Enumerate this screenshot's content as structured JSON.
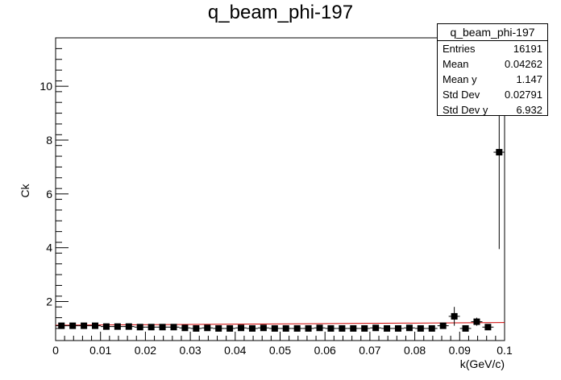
{
  "title": "q_beam_phi-197",
  "stats": {
    "header": "q_beam_phi-197",
    "rows": [
      {
        "label": "Entries",
        "value": "16191"
      },
      {
        "label": "Mean",
        "value": "0.04262"
      },
      {
        "label": "Mean y",
        "value": "1.147"
      },
      {
        "label": "Std Dev",
        "value": "0.02791"
      },
      {
        "label": "Std Dev y",
        "value": "6.932"
      }
    ]
  },
  "chart_data": {
    "type": "scatter",
    "title": "q_beam_phi-197",
    "xlabel": "k(GeV/c)",
    "ylabel": "Ck",
    "xlim": [
      0,
      0.1
    ],
    "ylim": [
      0.55,
      11.8
    ],
    "x_ticks": [
      "0",
      "0.01",
      "0.02",
      "0.03",
      "0.04",
      "0.05",
      "0.06",
      "0.07",
      "0.08",
      "0.09",
      "0.1"
    ],
    "y_ticks": [
      "2",
      "4",
      "6",
      "8",
      "10"
    ],
    "y_tick_values": [
      2,
      4,
      6,
      8,
      10
    ],
    "fit_line": {
      "color": "#cc0000",
      "x": [
        0,
        0.1
      ],
      "y": [
        1.12,
        1.22
      ]
    },
    "series": [
      {
        "marker_color": "#000000",
        "x": [
          0.0013,
          0.0038,
          0.0063,
          0.0088,
          0.0113,
          0.0138,
          0.0163,
          0.0188,
          0.0213,
          0.0238,
          0.0263,
          0.0288,
          0.0313,
          0.0338,
          0.0363,
          0.0388,
          0.0413,
          0.0438,
          0.0463,
          0.0488,
          0.0513,
          0.0538,
          0.0563,
          0.0588,
          0.0613,
          0.0638,
          0.0663,
          0.0688,
          0.0713,
          0.0738,
          0.0763,
          0.0788,
          0.0813,
          0.0838,
          0.0863,
          0.0888,
          0.0913,
          0.0938,
          0.0963,
          0.0988
        ],
        "y": [
          1.1,
          1.1,
          1.1,
          1.1,
          1.07,
          1.07,
          1.07,
          1.05,
          1.05,
          1.05,
          1.05,
          1.02,
          1.0,
          1.02,
          1.0,
          1.0,
          1.02,
          1.0,
          1.02,
          1.0,
          1.0,
          1.0,
          1.0,
          1.02,
          1.0,
          1.0,
          1.0,
          1.0,
          1.02,
          1.0,
          1.0,
          1.02,
          1.0,
          1.0,
          1.1,
          1.45,
          1.0,
          1.25,
          1.05,
          7.55
        ],
        "yerr": [
          0.05,
          0.05,
          0.05,
          0.05,
          0.05,
          0.05,
          0.05,
          0.05,
          0.05,
          0.05,
          0.05,
          0.05,
          0.05,
          0.05,
          0.05,
          0.05,
          0.05,
          0.05,
          0.05,
          0.05,
          0.05,
          0.05,
          0.05,
          0.05,
          0.05,
          0.05,
          0.05,
          0.05,
          0.05,
          0.05,
          0.05,
          0.05,
          0.05,
          0.05,
          0.08,
          0.35,
          0.08,
          0.15,
          0.08,
          3.6
        ]
      }
    ]
  }
}
